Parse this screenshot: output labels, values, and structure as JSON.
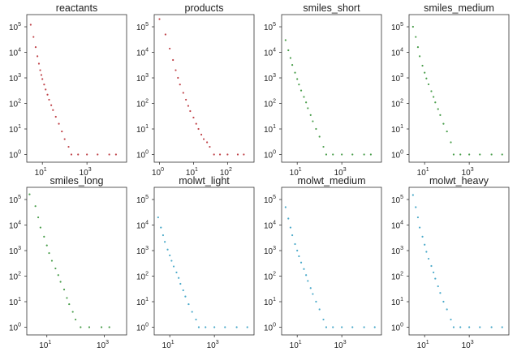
{
  "figure": {
    "colors": {
      "red": "#c0444a",
      "green": "#4a9e4c",
      "blue": "#4aa9c9",
      "axis": "#333333"
    }
  },
  "chart_data": [
    {
      "type": "scatter",
      "title": "reactants",
      "color": "red",
      "log_x": true,
      "log_y": true,
      "xlim": [
        2,
        60000
      ],
      "ylim": [
        0.5,
        300000
      ],
      "xticks": [
        {
          "value": 10,
          "base": "10",
          "exp": "1"
        },
        {
          "value": 1000,
          "base": "10",
          "exp": "3"
        }
      ],
      "yticks": [
        {
          "value": 1,
          "base": "10",
          "exp": "0"
        },
        {
          "value": 10,
          "base": "10",
          "exp": "1"
        },
        {
          "value": 100,
          "base": "10",
          "exp": "2"
        },
        {
          "value": 1000,
          "base": "10",
          "exp": "3"
        },
        {
          "value": 10000,
          "base": "10",
          "exp": "4"
        },
        {
          "value": 100000,
          "base": "10",
          "exp": "5"
        }
      ],
      "points": [
        [
          3,
          120000
        ],
        [
          4,
          40000
        ],
        [
          5,
          16000
        ],
        [
          6,
          7000
        ],
        [
          7,
          3600
        ],
        [
          8,
          2000
        ],
        [
          9,
          1300
        ],
        [
          10,
          900
        ],
        [
          12,
          550
        ],
        [
          14,
          350
        ],
        [
          17,
          220
        ],
        [
          20,
          140
        ],
        [
          25,
          85
        ],
        [
          30,
          55
        ],
        [
          40,
          30
        ],
        [
          55,
          16
        ],
        [
          75,
          8
        ],
        [
          100,
          4
        ],
        [
          150,
          2
        ],
        [
          200,
          1
        ],
        [
          400,
          1
        ],
        [
          1000,
          1
        ],
        [
          3000,
          1
        ],
        [
          10000,
          1
        ],
        [
          20000,
          1
        ]
      ]
    },
    {
      "type": "scatter",
      "title": "products",
      "color": "red",
      "log_x": true,
      "log_y": true,
      "xlim": [
        0.7,
        600
      ],
      "ylim": [
        0.5,
        300000
      ],
      "xticks": [
        {
          "value": 1,
          "base": "10",
          "exp": "0"
        },
        {
          "value": 10,
          "base": "10",
          "exp": "1"
        },
        {
          "value": 100,
          "base": "10",
          "exp": "2"
        }
      ],
      "yticks": [
        {
          "value": 1,
          "base": "10",
          "exp": "0"
        },
        {
          "value": 10,
          "base": "10",
          "exp": "1"
        },
        {
          "value": 100,
          "base": "10",
          "exp": "2"
        },
        {
          "value": 1000,
          "base": "10",
          "exp": "3"
        },
        {
          "value": 10000,
          "base": "10",
          "exp": "4"
        },
        {
          "value": 100000,
          "base": "10",
          "exp": "5"
        }
      ],
      "points": [
        [
          1,
          200000
        ],
        [
          1.5,
          50000
        ],
        [
          2,
          14000
        ],
        [
          2.5,
          5000
        ],
        [
          3,
          2000
        ],
        [
          3.5,
          1000
        ],
        [
          4,
          550
        ],
        [
          5,
          260
        ],
        [
          6,
          140
        ],
        [
          7,
          80
        ],
        [
          8,
          50
        ],
        [
          10,
          28
        ],
        [
          12,
          16
        ],
        [
          14,
          10
        ],
        [
          17,
          6
        ],
        [
          20,
          4
        ],
        [
          25,
          3
        ],
        [
          30,
          2
        ],
        [
          40,
          1
        ],
        [
          60,
          1
        ],
        [
          100,
          1
        ],
        [
          200,
          1
        ],
        [
          300,
          1
        ]
      ]
    },
    {
      "type": "scatter",
      "title": "smiles_short",
      "color": "green",
      "log_x": true,
      "log_y": true,
      "xlim": [
        2,
        60000
      ],
      "ylim": [
        0.5,
        300000
      ],
      "xticks": [
        {
          "value": 10,
          "base": "10",
          "exp": "1"
        },
        {
          "value": 1000,
          "base": "10",
          "exp": "3"
        }
      ],
      "yticks": [
        {
          "value": 1,
          "base": "10",
          "exp": "0"
        },
        {
          "value": 10,
          "base": "10",
          "exp": "1"
        },
        {
          "value": 100,
          "base": "10",
          "exp": "2"
        },
        {
          "value": 1000,
          "base": "10",
          "exp": "3"
        },
        {
          "value": 10000,
          "base": "10",
          "exp": "4"
        },
        {
          "value": 100000,
          "base": "10",
          "exp": "5"
        }
      ],
      "points": [
        [
          3,
          30000
        ],
        [
          4,
          12000
        ],
        [
          5,
          6000
        ],
        [
          6,
          3200
        ],
        [
          8,
          1600
        ],
        [
          10,
          900
        ],
        [
          12,
          550
        ],
        [
          15,
          320
        ],
        [
          20,
          180
        ],
        [
          25,
          110
        ],
        [
          30,
          65
        ],
        [
          40,
          35
        ],
        [
          50,
          20
        ],
        [
          70,
          10
        ],
        [
          100,
          5
        ],
        [
          150,
          2
        ],
        [
          200,
          1
        ],
        [
          400,
          1
        ],
        [
          1000,
          1
        ],
        [
          3000,
          1
        ],
        [
          10000,
          1
        ],
        [
          20000,
          1
        ]
      ]
    },
    {
      "type": "scatter",
      "title": "smiles_medium",
      "color": "green",
      "log_x": true,
      "log_y": true,
      "xlim": [
        2,
        60000
      ],
      "ylim": [
        0.5,
        300000
      ],
      "xticks": [
        {
          "value": 10,
          "base": "10",
          "exp": "1"
        },
        {
          "value": 1000,
          "base": "10",
          "exp": "3"
        }
      ],
      "yticks": [
        {
          "value": 1,
          "base": "10",
          "exp": "0"
        },
        {
          "value": 10,
          "base": "10",
          "exp": "1"
        },
        {
          "value": 100,
          "base": "10",
          "exp": "2"
        },
        {
          "value": 1000,
          "base": "10",
          "exp": "3"
        },
        {
          "value": 10000,
          "base": "10",
          "exp": "4"
        },
        {
          "value": 100000,
          "base": "10",
          "exp": "5"
        }
      ],
      "points": [
        [
          3,
          100000
        ],
        [
          4,
          40000
        ],
        [
          5,
          16000
        ],
        [
          6,
          7000
        ],
        [
          8,
          3000
        ],
        [
          10,
          1600
        ],
        [
          12,
          950
        ],
        [
          15,
          560
        ],
        [
          20,
          300
        ],
        [
          25,
          180
        ],
        [
          30,
          110
        ],
        [
          40,
          60
        ],
        [
          50,
          35
        ],
        [
          70,
          16
        ],
        [
          100,
          8
        ],
        [
          150,
          3
        ],
        [
          200,
          1
        ],
        [
          400,
          1
        ],
        [
          1000,
          1
        ],
        [
          3000,
          1
        ],
        [
          10000,
          1
        ],
        [
          30000,
          1
        ]
      ]
    },
    {
      "type": "scatter",
      "title": "smiles_long",
      "color": "green",
      "log_x": true,
      "log_y": true,
      "xlim": [
        2,
        6000
      ],
      "ylim": [
        0.5,
        300000
      ],
      "xticks": [
        {
          "value": 10,
          "base": "10",
          "exp": "1"
        },
        {
          "value": 1000,
          "base": "10",
          "exp": "3"
        }
      ],
      "yticks": [
        {
          "value": 1,
          "base": "10",
          "exp": "0"
        },
        {
          "value": 10,
          "base": "10",
          "exp": "1"
        },
        {
          "value": 100,
          "base": "10",
          "exp": "2"
        },
        {
          "value": 1000,
          "base": "10",
          "exp": "3"
        },
        {
          "value": 10000,
          "base": "10",
          "exp": "4"
        },
        {
          "value": 100000,
          "base": "10",
          "exp": "5"
        }
      ],
      "points": [
        [
          2.5,
          160000
        ],
        [
          4,
          55000
        ],
        [
          5,
          20000
        ],
        [
          6,
          8000
        ],
        [
          8,
          3500
        ],
        [
          10,
          1600
        ],
        [
          12,
          800
        ],
        [
          15,
          400
        ],
        [
          20,
          200
        ],
        [
          25,
          110
        ],
        [
          30,
          60
        ],
        [
          40,
          30
        ],
        [
          50,
          14
        ],
        [
          60,
          8
        ],
        [
          80,
          4
        ],
        [
          100,
          2
        ],
        [
          150,
          1
        ],
        [
          300,
          1
        ],
        [
          800,
          1
        ],
        [
          1500,
          1
        ]
      ]
    },
    {
      "type": "scatter",
      "title": "molwt_light",
      "color": "blue",
      "log_x": true,
      "log_y": true,
      "xlim": [
        2,
        60000
      ],
      "ylim": [
        0.5,
        300000
      ],
      "xticks": [
        {
          "value": 10,
          "base": "10",
          "exp": "1"
        },
        {
          "value": 1000,
          "base": "10",
          "exp": "3"
        }
      ],
      "yticks": [
        {
          "value": 1,
          "base": "10",
          "exp": "0"
        },
        {
          "value": 10,
          "base": "10",
          "exp": "1"
        },
        {
          "value": 100,
          "base": "10",
          "exp": "2"
        },
        {
          "value": 1000,
          "base": "10",
          "exp": "3"
        },
        {
          "value": 10000,
          "base": "10",
          "exp": "4"
        },
        {
          "value": 100000,
          "base": "10",
          "exp": "5"
        }
      ],
      "points": [
        [
          3,
          20000
        ],
        [
          4,
          8000
        ],
        [
          5,
          4000
        ],
        [
          6,
          2200
        ],
        [
          8,
          1100
        ],
        [
          10,
          650
        ],
        [
          12,
          400
        ],
        [
          15,
          240
        ],
        [
          20,
          140
        ],
        [
          25,
          85
        ],
        [
          30,
          50
        ],
        [
          40,
          28
        ],
        [
          50,
          16
        ],
        [
          70,
          8
        ],
        [
          100,
          4
        ],
        [
          150,
          2
        ],
        [
          200,
          1
        ],
        [
          400,
          1
        ],
        [
          1000,
          1
        ],
        [
          3000,
          1
        ],
        [
          10000,
          1
        ],
        [
          30000,
          1
        ]
      ]
    },
    {
      "type": "scatter",
      "title": "molwt_medium",
      "color": "blue",
      "log_x": true,
      "log_y": true,
      "xlim": [
        2,
        60000
      ],
      "ylim": [
        0.5,
        300000
      ],
      "xticks": [
        {
          "value": 10,
          "base": "10",
          "exp": "1"
        },
        {
          "value": 1000,
          "base": "10",
          "exp": "3"
        }
      ],
      "yticks": [
        {
          "value": 1,
          "base": "10",
          "exp": "0"
        },
        {
          "value": 10,
          "base": "10",
          "exp": "1"
        },
        {
          "value": 100,
          "base": "10",
          "exp": "2"
        },
        {
          "value": 1000,
          "base": "10",
          "exp": "3"
        },
        {
          "value": 10000,
          "base": "10",
          "exp": "4"
        },
        {
          "value": 100000,
          "base": "10",
          "exp": "5"
        }
      ],
      "points": [
        [
          3,
          50000
        ],
        [
          4,
          18000
        ],
        [
          5,
          8000
        ],
        [
          6,
          4000
        ],
        [
          8,
          1800
        ],
        [
          10,
          1000
        ],
        [
          12,
          600
        ],
        [
          15,
          340
        ],
        [
          20,
          190
        ],
        [
          25,
          110
        ],
        [
          30,
          65
        ],
        [
          40,
          34
        ],
        [
          50,
          20
        ],
        [
          70,
          10
        ],
        [
          100,
          5
        ],
        [
          150,
          2
        ],
        [
          200,
          1
        ],
        [
          400,
          1
        ],
        [
          1000,
          1
        ],
        [
          3000,
          1
        ],
        [
          10000,
          1
        ],
        [
          30000,
          1
        ]
      ]
    },
    {
      "type": "scatter",
      "title": "molwt_heavy",
      "color": "blue",
      "log_x": true,
      "log_y": true,
      "xlim": [
        2,
        60000
      ],
      "ylim": [
        0.5,
        300000
      ],
      "xticks": [
        {
          "value": 10,
          "base": "10",
          "exp": "1"
        },
        {
          "value": 1000,
          "base": "10",
          "exp": "3"
        }
      ],
      "yticks": [
        {
          "value": 1,
          "base": "10",
          "exp": "0"
        },
        {
          "value": 10,
          "base": "10",
          "exp": "1"
        },
        {
          "value": 100,
          "base": "10",
          "exp": "2"
        },
        {
          "value": 1000,
          "base": "10",
          "exp": "3"
        },
        {
          "value": 10000,
          "base": "10",
          "exp": "4"
        },
        {
          "value": 100000,
          "base": "10",
          "exp": "5"
        }
      ],
      "points": [
        [
          3,
          150000
        ],
        [
          4,
          50000
        ],
        [
          5,
          20000
        ],
        [
          6,
          8000
        ],
        [
          8,
          3500
        ],
        [
          10,
          1700
        ],
        [
          12,
          900
        ],
        [
          15,
          480
        ],
        [
          20,
          250
        ],
        [
          25,
          140
        ],
        [
          30,
          80
        ],
        [
          40,
          40
        ],
        [
          50,
          22
        ],
        [
          70,
          10
        ],
        [
          100,
          5
        ],
        [
          150,
          2
        ],
        [
          200,
          1
        ],
        [
          400,
          1
        ],
        [
          1000,
          1
        ],
        [
          3000,
          1
        ],
        [
          10000,
          1
        ],
        [
          30000,
          1
        ]
      ]
    }
  ]
}
